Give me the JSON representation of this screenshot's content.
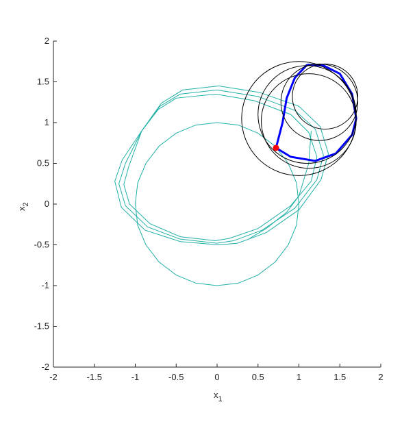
{
  "chart_data": {
    "type": "line",
    "xlabel": {
      "base": "x",
      "sub": "1"
    },
    "ylabel": {
      "base": "x",
      "sub": "2"
    },
    "xlim": [
      -2,
      2
    ],
    "ylim": [
      -2,
      2
    ],
    "xticks": [
      -2,
      -1.5,
      -1,
      -0.5,
      0,
      0.5,
      1,
      1.5,
      2
    ],
    "yticks": [
      -2,
      -1.5,
      -1,
      -0.5,
      0,
      0.5,
      1,
      1.5,
      2
    ],
    "series": [
      {
        "color": "#20b0a6",
        "width": 1,
        "x": [
          1,
          0.97,
          0.87,
          0.71,
          0.5,
          0.26,
          0,
          -0.26,
          -0.5,
          -0.71,
          -0.87,
          -0.97,
          -1,
          -0.97,
          -0.87,
          -0.71,
          -0.5,
          -0.26,
          0,
          0.26,
          0.5,
          0.71,
          0.87,
          0.97,
          1
        ],
        "y": [
          0,
          0.26,
          0.5,
          0.71,
          0.87,
          0.97,
          1,
          0.97,
          0.87,
          0.71,
          0.5,
          0.26,
          0,
          -0.26,
          -0.5,
          -0.71,
          -0.87,
          -0.97,
          -1,
          -0.97,
          -0.87,
          -0.71,
          -0.5,
          -0.26,
          0
        ]
      },
      {
        "color": "#20b0a6",
        "width": 1,
        "x": [
          -0.92,
          -0.7,
          -0.45,
          0,
          0.5,
          0.95,
          1.2,
          1.3,
          1.22,
          0.95,
          0.55,
          0.2,
          0,
          -0.45,
          -0.85,
          -1.12,
          -1.2,
          -1.12,
          -0.92
        ],
        "y": [
          0.9,
          1.2,
          1.35,
          1.4,
          1.32,
          1.15,
          0.92,
          0.6,
          0.3,
          -0.05,
          -0.32,
          -0.45,
          -0.48,
          -0.43,
          -0.28,
          -0.02,
          0.25,
          0.5,
          0.9
        ]
      },
      {
        "color": "#20b0a6",
        "width": 1,
        "x": [
          -0.92,
          -0.68,
          -0.42,
          0.02,
          0.52,
          1.0,
          1.26,
          1.36,
          1.27,
          1.0,
          0.6,
          0.25,
          0.02,
          -0.45,
          -0.88,
          -1.17,
          -1.25,
          -1.16,
          -0.92
        ],
        "y": [
          0.9,
          1.24,
          1.4,
          1.45,
          1.37,
          1.2,
          0.95,
          0.62,
          0.3,
          -0.07,
          -0.35,
          -0.48,
          -0.5,
          -0.46,
          -0.32,
          -0.04,
          0.28,
          0.54,
          0.9
        ]
      },
      {
        "color": "#20b0a6",
        "width": 1,
        "x": [
          -0.92,
          -0.72,
          -0.5,
          -0.02,
          0.45,
          0.9,
          1.12,
          1.22,
          1.15,
          0.9,
          0.5,
          0.15,
          -0.02,
          -0.45,
          -0.82,
          -1.07,
          -1.14,
          -1.08,
          -0.92
        ],
        "y": [
          0.9,
          1.16,
          1.3,
          1.35,
          1.27,
          1.1,
          0.88,
          0.58,
          0.28,
          -0.02,
          -0.3,
          -0.42,
          -0.45,
          -0.4,
          -0.24,
          0.0,
          0.24,
          0.46,
          0.9
        ]
      },
      {
        "color": "#20b0a6",
        "width": 1,
        "x": [
          1.15,
          1.12,
          1.0,
          0.85,
          0.6,
          0.4
        ],
        "y": [
          0.9,
          0.5,
          0.1,
          -0.1,
          -0.3,
          -0.42
        ]
      },
      {
        "color": "#0000ff",
        "width": 3,
        "x": [
          1.1,
          0.95,
          0.85,
          0.8,
          0.72,
          0.9,
          1.2,
          1.45,
          1.65,
          1.7,
          1.65,
          1.5,
          1.3,
          1.1
        ],
        "y": [
          1.71,
          1.55,
          1.3,
          1.0,
          0.69,
          0.58,
          0.53,
          0.62,
          0.85,
          1.05,
          1.35,
          1.6,
          1.7,
          1.71
        ]
      }
    ],
    "circle_color": "#000000",
    "circles": [
      {
        "cx": 1.25,
        "cy": 1.25,
        "r": 0.47
      },
      {
        "cx": 1.0,
        "cy": 1.05,
        "r": 0.7
      },
      {
        "cx": 1.1,
        "cy": 1.1,
        "r": 0.6
      },
      {
        "cx": 1.32,
        "cy": 1.32,
        "r": 0.4
      },
      {
        "cx": 1.12,
        "cy": 1.02,
        "r": 0.58
      }
    ],
    "points": {
      "color": "#ff0000",
      "x": [
        0.72
      ],
      "y": [
        0.69
      ]
    }
  }
}
